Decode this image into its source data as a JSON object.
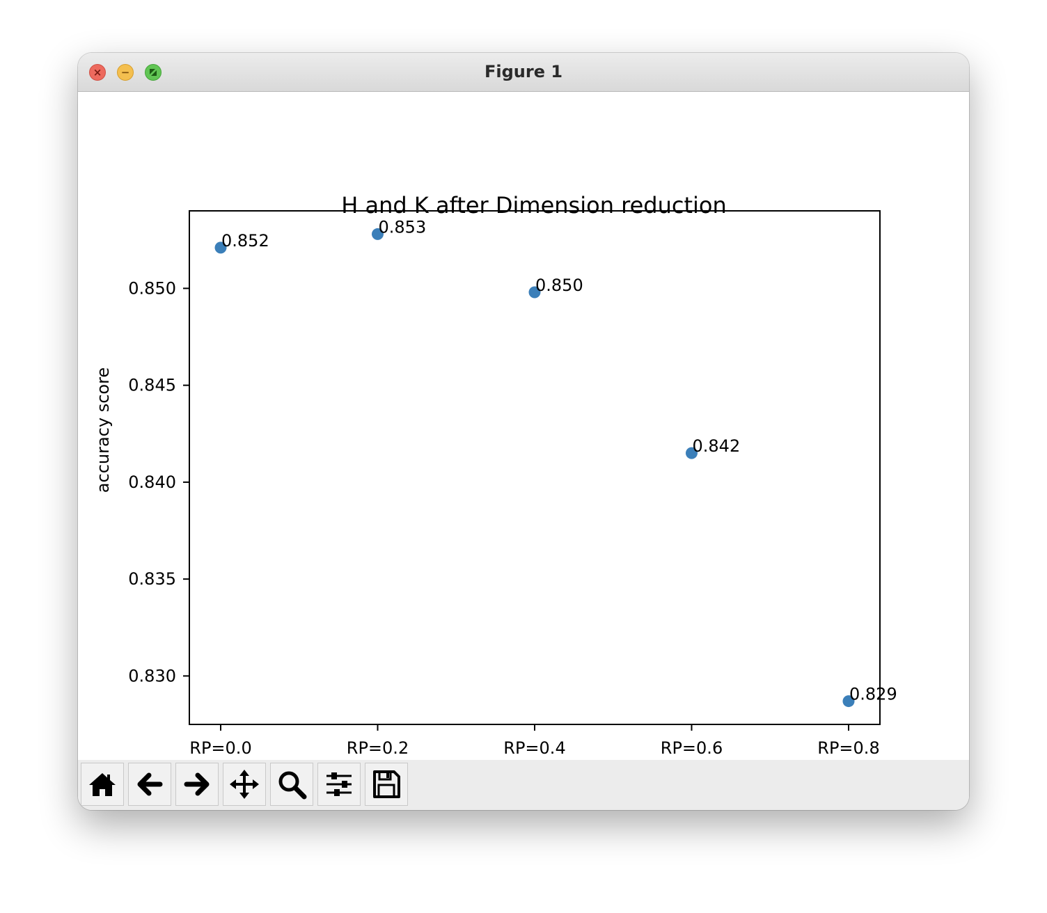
{
  "window": {
    "title": "Figure 1"
  },
  "toolbar": {
    "tools": [
      {
        "icon": "home-icon"
      },
      {
        "icon": "arrow-left-icon"
      },
      {
        "icon": "arrow-right-icon"
      },
      {
        "icon": "move-icon"
      },
      {
        "icon": "zoom-icon"
      },
      {
        "icon": "sliders-icon"
      },
      {
        "icon": "save-icon"
      }
    ]
  },
  "chart_data": {
    "type": "scatter",
    "title": "H and K after Dimension reduction",
    "xlabel": "",
    "ylabel": "accuracy score",
    "categories": [
      "RP=0.0",
      "RP=0.2",
      "RP=0.4",
      "RP=0.6",
      "RP=0.8"
    ],
    "values": [
      0.8521,
      0.8528,
      0.8498,
      0.8415,
      0.8287
    ],
    "point_labels": [
      "0.852",
      "0.853",
      "0.850",
      "0.842",
      "0.829"
    ],
    "ylim": [
      0.8275,
      0.854
    ],
    "yticks": [
      0.83,
      0.835,
      0.84,
      0.845,
      0.85
    ],
    "ytick_labels": [
      "0.830",
      "0.835",
      "0.840",
      "0.845",
      "0.850"
    ],
    "marker_color": "#3b7fb9",
    "grid": false,
    "legend": "none"
  }
}
